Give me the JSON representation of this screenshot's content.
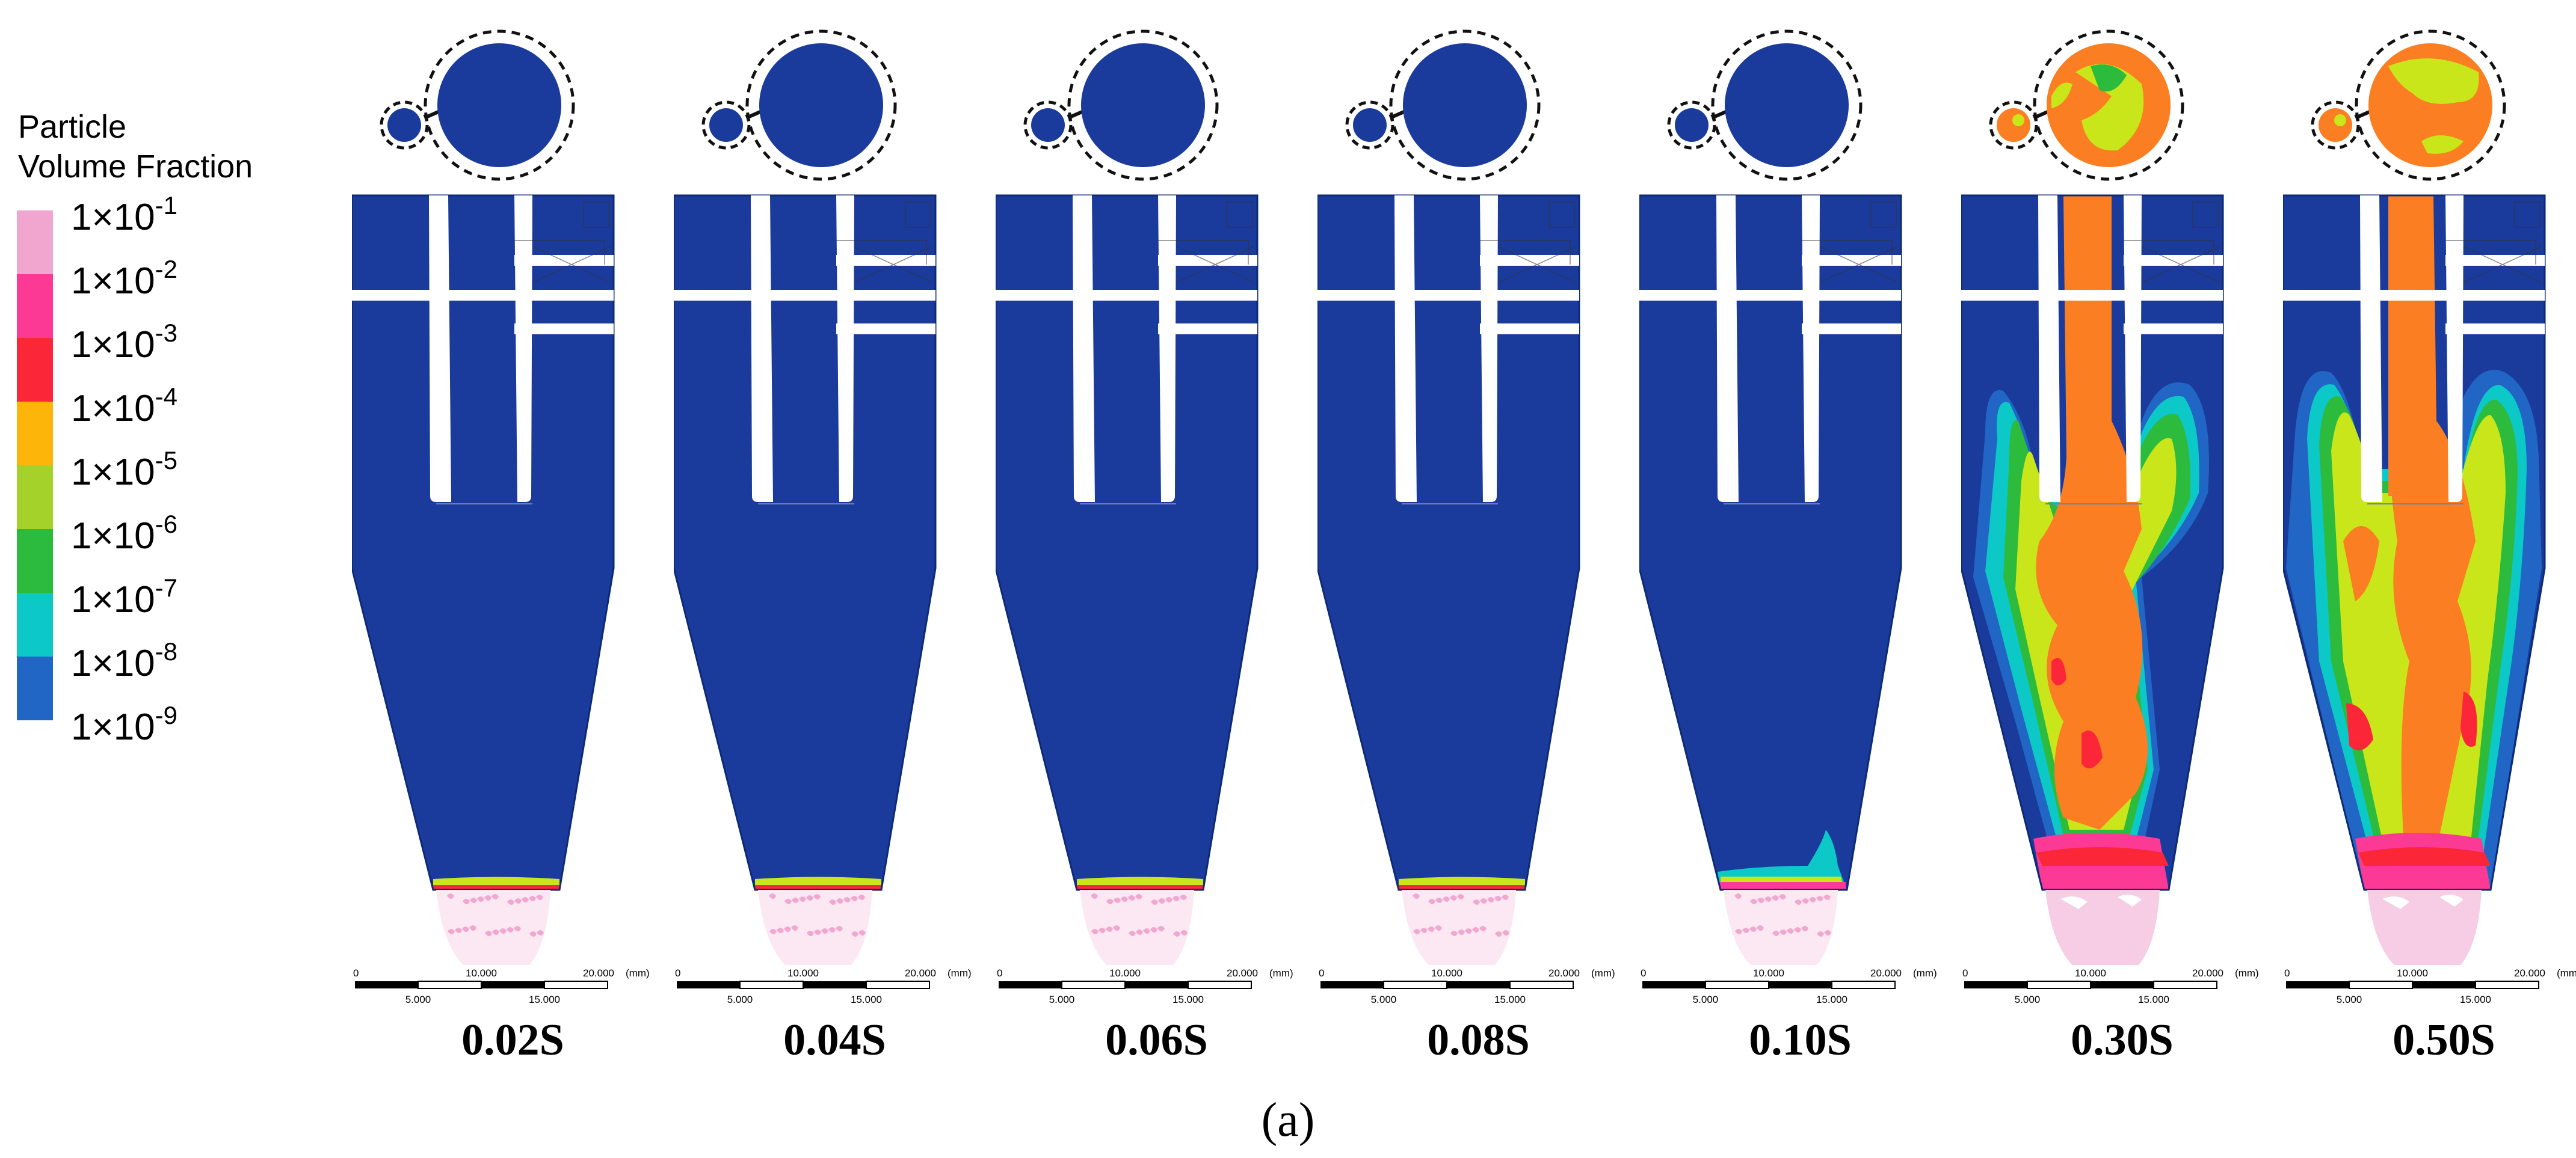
{
  "legend": {
    "title_line1": "Particle",
    "title_line2": "Volume Fraction",
    "levels": [
      {
        "label_base": "1×10",
        "exp": "-1",
        "color": "#f0a6cf"
      },
      {
        "label_base": "1×10",
        "exp": "-2",
        "color": "#fc3a96"
      },
      {
        "label_base": "1×10",
        "exp": "-3",
        "color": "#fb2638"
      },
      {
        "label_base": "1×10",
        "exp": "-4",
        "color": "#fdb509"
      },
      {
        "label_base": "1×10",
        "exp": "-5",
        "color": "#a5d22a"
      },
      {
        "label_base": "1×10",
        "exp": "-6",
        "color": "#2dbb3d"
      },
      {
        "label_base": "1×10",
        "exp": "-7",
        "color": "#0cc8c6"
      },
      {
        "label_base": "1×10",
        "exp": "-8",
        "color": "#2166c4"
      },
      {
        "label_base": "1×10",
        "exp": "-9",
        "color": null
      }
    ]
  },
  "colors": {
    "background_field": "#1a3b9c",
    "deposit_pink": "#f6cde4",
    "orange": "#fb7e22",
    "yellow_green": "#c8e61a"
  },
  "scale_bar": {
    "ticks": [
      "0",
      "10.000",
      "20.000"
    ],
    "sub_ticks": [
      "5.000",
      "15.000"
    ],
    "unit": "(mm)"
  },
  "panels": [
    {
      "time": "0.02S",
      "state": "initial"
    },
    {
      "time": "0.04S",
      "state": "initial"
    },
    {
      "time": "0.06S",
      "state": "initial"
    },
    {
      "time": "0.08S",
      "state": "initial"
    },
    {
      "time": "0.10S",
      "state": "early"
    },
    {
      "time": "0.30S",
      "state": "developing"
    },
    {
      "time": "0.50S",
      "state": "developed"
    }
  ],
  "caption": "(a)"
}
